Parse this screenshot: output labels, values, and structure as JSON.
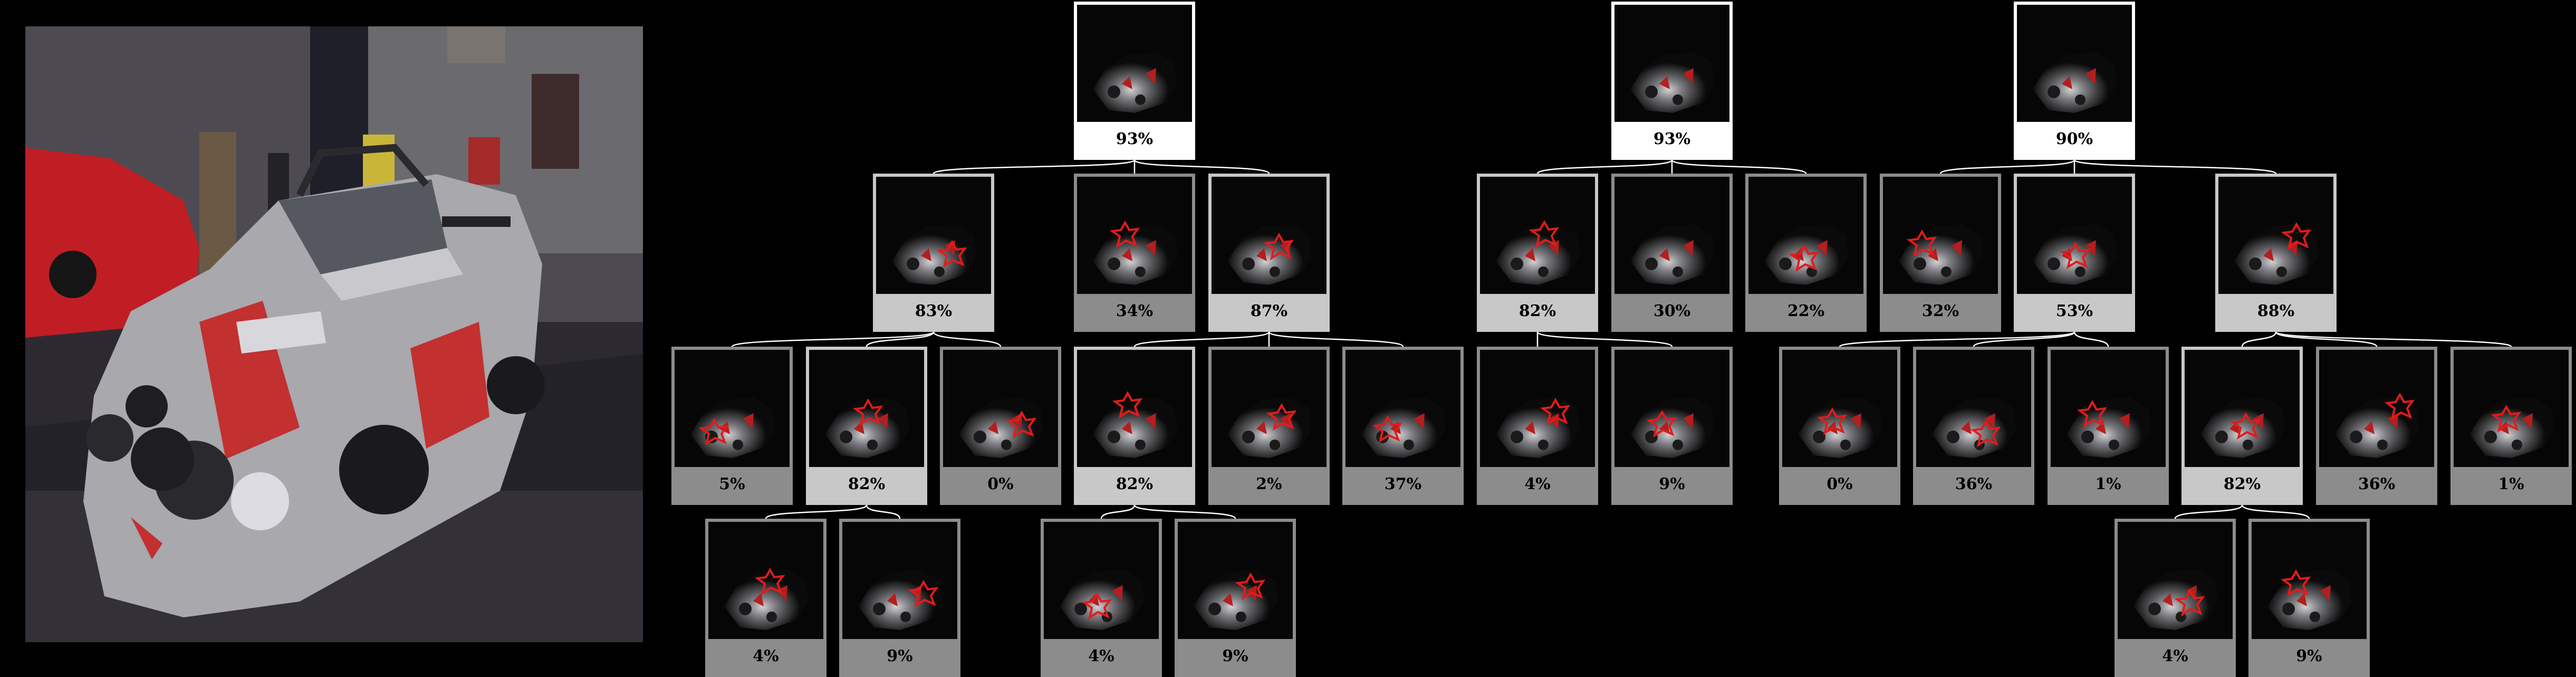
{
  "colors": {
    "background": "#000000",
    "edge": "#ffffff",
    "highlight": "#e31b1b",
    "border_selected": "#ffffff",
    "border_expanded": "#c8c8c8",
    "border_default": "#8c8c8c"
  },
  "photo": {
    "description_icon": "race-car-photo"
  },
  "trees": [
    {
      "name": "tree-1",
      "nodes": [
        {
          "id": "t1-root",
          "value": "93%",
          "level": "white",
          "marker": "none"
        },
        {
          "id": "t1-a",
          "value": "83%",
          "level": "light",
          "marker": "outline"
        },
        {
          "id": "t1-b",
          "value": "34%",
          "level": "gray",
          "marker": "outline"
        },
        {
          "id": "t1-c",
          "value": "87%",
          "level": "light",
          "marker": "outline"
        },
        {
          "id": "t1-a1",
          "value": "5%",
          "level": "gray",
          "marker": "outline"
        },
        {
          "id": "t1-a2",
          "value": "82%",
          "level": "light",
          "marker": "outline"
        },
        {
          "id": "t1-a3",
          "value": "0%",
          "level": "gray",
          "marker": "outline"
        },
        {
          "id": "t1-c1",
          "value": "82%",
          "level": "light",
          "marker": "outline"
        },
        {
          "id": "t1-c2",
          "value": "2%",
          "level": "gray",
          "marker": "outline"
        },
        {
          "id": "t1-c3",
          "value": "37%",
          "level": "gray",
          "marker": "outline"
        },
        {
          "id": "t1-a2a",
          "value": "4%",
          "level": "gray",
          "marker": "outline"
        },
        {
          "id": "t1-a2b",
          "value": "9%",
          "level": "gray",
          "marker": "outline"
        },
        {
          "id": "t1-c1a",
          "value": "4%",
          "level": "gray",
          "marker": "outline"
        },
        {
          "id": "t1-c1b",
          "value": "9%",
          "level": "gray",
          "marker": "outline"
        }
      ]
    },
    {
      "name": "tree-2",
      "nodes": [
        {
          "id": "t2-root",
          "value": "93%",
          "level": "white",
          "marker": "none"
        },
        {
          "id": "t2-a",
          "value": "82%",
          "level": "light",
          "marker": "outline"
        },
        {
          "id": "t2-b",
          "value": "30%",
          "level": "gray",
          "marker": "none"
        },
        {
          "id": "t2-c",
          "value": "22%",
          "level": "gray",
          "marker": "outline"
        },
        {
          "id": "t2-a1",
          "value": "4%",
          "level": "gray",
          "marker": "outline"
        },
        {
          "id": "t2-a2",
          "value": "9%",
          "level": "gray",
          "marker": "outline"
        }
      ]
    },
    {
      "name": "tree-3",
      "nodes": [
        {
          "id": "t3-root",
          "value": "90%",
          "level": "white",
          "marker": "none"
        },
        {
          "id": "t3-a",
          "value": "32%",
          "level": "gray",
          "marker": "outline"
        },
        {
          "id": "t3-b",
          "value": "53%",
          "level": "light",
          "marker": "outline"
        },
        {
          "id": "t3-c",
          "value": "88%",
          "level": "light",
          "marker": "outline"
        },
        {
          "id": "t3-b1",
          "value": "0%",
          "level": "gray",
          "marker": "outline"
        },
        {
          "id": "t3-b2",
          "value": "36%",
          "level": "gray",
          "marker": "outline"
        },
        {
          "id": "t3-b3",
          "value": "1%",
          "level": "gray",
          "marker": "outline"
        },
        {
          "id": "t3-c1",
          "value": "82%",
          "level": "light",
          "marker": "outline"
        },
        {
          "id": "t3-c2",
          "value": "36%",
          "level": "gray",
          "marker": "outline"
        },
        {
          "id": "t3-c3",
          "value": "1%",
          "level": "gray",
          "marker": "outline"
        },
        {
          "id": "t3-c1a",
          "value": "4%",
          "level": "gray",
          "marker": "outline"
        },
        {
          "id": "t3-c1b",
          "value": "9%",
          "level": "gray",
          "marker": "outline"
        }
      ]
    }
  ]
}
